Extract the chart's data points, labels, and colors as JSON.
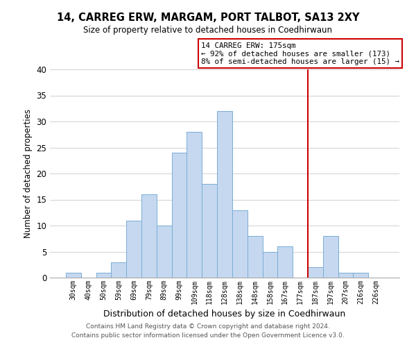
{
  "title": "14, CARREG ERW, MARGAM, PORT TALBOT, SA13 2XY",
  "subtitle": "Size of property relative to detached houses in Coedhirwaun",
  "xlabel": "Distribution of detached houses by size in Coedhirwaun",
  "ylabel": "Number of detached properties",
  "bar_labels": [
    "30sqm",
    "40sqm",
    "50sqm",
    "59sqm",
    "69sqm",
    "79sqm",
    "89sqm",
    "99sqm",
    "109sqm",
    "118sqm",
    "128sqm",
    "138sqm",
    "148sqm",
    "158sqm",
    "167sqm",
    "177sqm",
    "187sqm",
    "197sqm",
    "207sqm",
    "216sqm",
    "226sqm"
  ],
  "bar_values": [
    1,
    0,
    1,
    3,
    11,
    16,
    10,
    24,
    28,
    18,
    32,
    13,
    8,
    5,
    6,
    0,
    2,
    8,
    1,
    1,
    0
  ],
  "bar_color": "#c5d8f0",
  "bar_edge_color": "#7aadd4",
  "vline_color": "#cc0000",
  "ylim": [
    0,
    40
  ],
  "yticks": [
    0,
    5,
    10,
    15,
    20,
    25,
    30,
    35,
    40
  ],
  "annotation_title": "14 CARREG ERW: 175sqm",
  "annotation_line1": "← 92% of detached houses are smaller (173)",
  "annotation_line2": "8% of semi-detached houses are larger (15) →",
  "annotation_box_color": "#ffffff",
  "annotation_border_color": "#cc0000",
  "footer_line1": "Contains HM Land Registry data © Crown copyright and database right 2024.",
  "footer_line2": "Contains public sector information licensed under the Open Government Licence v3.0.",
  "background_color": "#ffffff",
  "grid_color": "#d0d0d0"
}
